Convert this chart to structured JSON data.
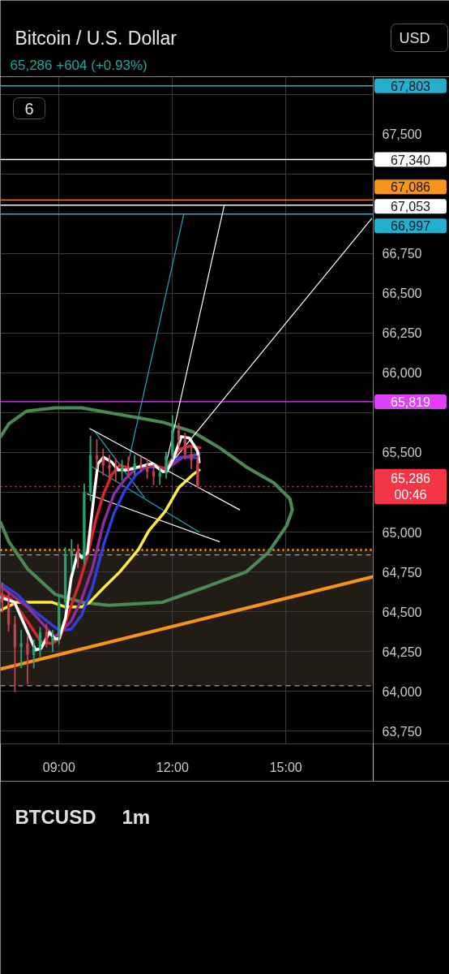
{
  "chart_data": {
    "type": "candlestick",
    "title": "Bitcoin / U.S. Dollar",
    "subtitle": "65,286 +604 (+0.93%)",
    "annotations": [
      "6",
      "USD",
      "BTCUSD",
      "1m"
    ],
    "xlim": [
      7.45,
      17.31
    ],
    "ylim": [
      63670,
      67860
    ],
    "xticks": [
      {
        "value": 9,
        "label": "09:00"
      },
      {
        "value": 12,
        "label": "12:00"
      },
      {
        "value": 15,
        "label": "15:00"
      }
    ],
    "yticks": [
      {
        "value": 63750,
        "label": "63,750"
      },
      {
        "value": 64000,
        "label": "64,000"
      },
      {
        "value": 64250,
        "label": "64,250"
      },
      {
        "value": 64500,
        "label": "64,500"
      },
      {
        "value": 64750,
        "label": "64,750"
      },
      {
        "value": 65000,
        "label": "65,000"
      },
      {
        "value": 65250,
        "label": null
      },
      {
        "value": 65500,
        "label": "65,500"
      },
      {
        "value": 65750,
        "label": null
      },
      {
        "value": 66000,
        "label": "66,000"
      },
      {
        "value": 66250,
        "label": "66,250"
      },
      {
        "value": 66500,
        "label": "66,500"
      },
      {
        "value": 66750,
        "label": "66,750"
      },
      {
        "value": 67000,
        "label": null
      },
      {
        "value": 67250,
        "label": null
      },
      {
        "value": 67500,
        "label": "67,500"
      },
      {
        "value": 67750,
        "label": null
      }
    ],
    "grid": true,
    "x": [
      7.5,
      7.667,
      7.833,
      8.0,
      8.167,
      8.333,
      8.5,
      8.667,
      8.833,
      9.0,
      9.167,
      9.333,
      9.5,
      9.667,
      9.833,
      10.0,
      10.167,
      10.333,
      10.5,
      10.667,
      10.833,
      11.0,
      11.167,
      11.333,
      11.5,
      11.667,
      11.833,
      12.0,
      12.167,
      12.333,
      12.5,
      12.667
    ],
    "ohlc": [
      [
        64600,
        64680,
        64500,
        64560
      ],
      [
        64560,
        64620,
        64380,
        64420
      ],
      [
        64420,
        64470,
        64000,
        64280
      ],
      [
        64280,
        64380,
        64150,
        64300
      ],
      [
        64300,
        64350,
        64050,
        64230
      ],
      [
        64230,
        64320,
        64150,
        64270
      ],
      [
        64270,
        64400,
        64220,
        64370
      ],
      [
        64370,
        64420,
        64280,
        64310
      ],
      [
        64310,
        64380,
        64250,
        64340
      ],
      [
        64340,
        64600,
        64300,
        64560
      ],
      [
        64560,
        64900,
        64520,
        64850
      ],
      [
        64850,
        64950,
        64760,
        64880
      ],
      [
        64880,
        64920,
        64780,
        64830
      ],
      [
        64830,
        65300,
        64800,
        65250
      ],
      [
        65250,
        65600,
        65200,
        65480
      ],
      [
        65480,
        65580,
        65400,
        65460
      ],
      [
        65460,
        65520,
        65360,
        65420
      ],
      [
        65420,
        65480,
        65340,
        65400
      ],
      [
        65400,
        65460,
        65320,
        65380
      ],
      [
        65380,
        65450,
        65330,
        65410
      ],
      [
        65410,
        65470,
        65350,
        65400
      ],
      [
        65400,
        65480,
        65360,
        65430
      ],
      [
        65430,
        65470,
        65380,
        65420
      ],
      [
        65420,
        65460,
        65340,
        65380
      ],
      [
        65380,
        65420,
        65300,
        65350
      ],
      [
        65350,
        65400,
        65300,
        65370
      ],
      [
        65370,
        65500,
        65340,
        65480
      ],
      [
        65480,
        65730,
        65460,
        65640
      ],
      [
        65640,
        65680,
        65540,
        65580
      ],
      [
        65580,
        65620,
        65460,
        65490
      ],
      [
        65490,
        65540,
        65400,
        65450
      ],
      [
        65450,
        65480,
        65280,
        65286
      ]
    ],
    "colors": [
      "#c2434b",
      "#c2434b",
      "#c2434b",
      "#25a36f",
      "#c2434b",
      "#25a36f",
      "#25a36f",
      "#c2434b",
      "#25a36f",
      "#25a36f",
      "#25a36f",
      "#25a36f",
      "#c2434b",
      "#25a36f",
      "#25a36f",
      "#c2434b",
      "#c2434b",
      "#c2434b",
      "#c2434b",
      "#25a36f",
      "#c2434b",
      "#25a36f",
      "#c2434b",
      "#c2434b",
      "#c2434b",
      "#25a36f",
      "#25a36f",
      "#25a36f",
      "#c2434b",
      "#c2434b",
      "#c2434b",
      "#c2434b"
    ],
    "bands": [
      {
        "axis": "y",
        "from": 64035,
        "to": 64888,
        "color": "#221c16"
      }
    ],
    "ref_lines": [
      {
        "axis": "y",
        "value": 67803,
        "label": "67,803",
        "color": "#22b0cc"
      },
      {
        "axis": "y",
        "value": 67340,
        "label": "67,340",
        "color": "#ffffff"
      },
      {
        "axis": "y",
        "value": 67086,
        "label": "67,086",
        "color": "#f7941d"
      },
      {
        "axis": "y",
        "value": 67053,
        "label": "67,053",
        "color": "#ffffff"
      },
      {
        "axis": "y",
        "value": 66997,
        "label": "66,997",
        "color": "#22b0cc"
      },
      {
        "axis": "y",
        "value": 65819,
        "label": "65,819",
        "color": "#e040fb"
      },
      {
        "axis": "y",
        "value": 65286,
        "label": "65,286\n00:46",
        "color": "#f23645",
        "line_style": "dotted"
      },
      {
        "axis": "y",
        "value": 64888,
        "label": null,
        "color": "#f7941d",
        "line_style": "dotted"
      },
      {
        "axis": "y",
        "value": 64857,
        "label": null,
        "color": "#9e9e9e",
        "line_style": "dashed"
      },
      {
        "axis": "y",
        "value": 64035,
        "label": null,
        "color": "#9e9e9e",
        "line_style": "dashed"
      }
    ],
    "series": [
      {
        "type": "line",
        "color": "#4a8a55",
        "x": [
          7.457,
          7.672,
          8.164,
          8.893,
          9.6,
          10.307,
          11.743,
          12.814,
          13.95,
          14.528,
          15.021,
          15.171,
          15.107,
          14.678,
          13.95,
          13.243,
          12.536,
          11.743,
          11.036,
          9.6,
          8.893,
          8.143,
          7.672,
          7.457
        ],
        "values": [
          65060,
          64940,
          64770,
          64610,
          64560,
          64540,
          64560,
          64650,
          64750,
          64870,
          65040,
          65140,
          65210,
          65310,
          65410,
          65530,
          65630,
          65690,
          65720,
          65780,
          65780,
          65760,
          65680,
          65600
        ]
      },
      {
        "type": "line",
        "color": "#f7931a",
        "x": [
          7.457,
          17.31
        ],
        "values": [
          64140,
          64720
        ]
      },
      {
        "type": "line",
        "color": "#26a6b8",
        "x": [
          9.921,
          11.25
        ],
        "values": [
          65640,
          65220
        ]
      },
      {
        "type": "line",
        "color": "#26a6b8",
        "x": [
          9.88,
          12.707
        ],
        "values": [
          65410,
          65000
        ]
      },
      {
        "type": "line",
        "color": "#26a6b8",
        "x": [
          10.779,
          12.3
        ],
        "values": [
          65380,
          66997
        ]
      },
      {
        "type": "line",
        "color": "#ffffff",
        "x": [
          9.814,
          13.778
        ],
        "values": [
          65650,
          65140
        ]
      },
      {
        "type": "line",
        "color": "#ffffff",
        "x": [
          9.75,
          13.243
        ],
        "values": [
          65240,
          64940
        ]
      },
      {
        "type": "line",
        "color": "#ffffff",
        "x": [
          11.807,
          13.371
        ],
        "values": [
          65400,
          67053
        ]
      },
      {
        "type": "line",
        "color": "#ffffff",
        "x": [
          11.85,
          17.271
        ],
        "values": [
          65400,
          66970
        ]
      },
      {
        "type": "line",
        "color": "#ffeb3b",
        "x": [
          7.457,
          7.886,
          8.314,
          8.807,
          9.171,
          9.6,
          9.814,
          10.179,
          10.607,
          11.1,
          11.379,
          11.807,
          12.171,
          12.536,
          12.707
        ],
        "values": [
          64510,
          64560,
          64560,
          64560,
          64530,
          64530,
          64560,
          64650,
          64750,
          64890,
          65010,
          65130,
          65280,
          65360,
          65390
        ]
      },
      {
        "type": "line",
        "color": "#2f3fd8",
        "x": [
          7.457,
          7.886,
          8.314,
          8.743,
          9.021,
          9.321,
          9.6,
          9.879,
          10.179,
          10.457,
          10.736,
          11.036,
          11.314,
          11.593,
          11.807,
          12.171,
          12.536,
          12.707
        ],
        "values": [
          64680,
          64610,
          64510,
          64430,
          64380,
          64390,
          64480,
          64650,
          64920,
          65120,
          65260,
          65360,
          65410,
          65410,
          65400,
          65470,
          65470,
          65460
        ]
      },
      {
        "type": "line",
        "color": "#8e2b9e",
        "x": [
          7.457,
          8.164,
          8.893,
          9.321,
          9.6,
          9.879,
          10.179,
          10.457,
          10.736,
          11.036,
          11.464,
          11.807,
          12.279,
          12.707
        ],
        "values": [
          64660,
          64530,
          64340,
          64440,
          64580,
          64770,
          65060,
          65240,
          65330,
          65400,
          65420,
          65390,
          65470,
          65490
        ]
      },
      {
        "type": "line",
        "color": "#d8262e",
        "x": [
          7.457,
          7.736,
          8.164,
          8.529,
          8.807,
          9.021,
          9.236,
          9.536,
          9.75,
          9.964,
          10.179,
          10.393,
          10.607,
          10.886,
          11.164,
          11.464,
          11.807,
          12.171,
          12.45,
          12.729
        ],
        "values": [
          64610,
          64580,
          64440,
          64310,
          64300,
          64330,
          64480,
          64680,
          64850,
          65070,
          65240,
          65360,
          65420,
          65400,
          65410,
          65420,
          65400,
          65520,
          65540,
          65530
        ]
      },
      {
        "type": "line",
        "color": "#ffffff",
        "x": [
          7.457,
          7.821,
          8.1,
          8.379,
          8.529,
          8.743,
          8.893,
          9.0,
          9.171,
          9.321,
          9.493,
          9.6,
          9.75,
          9.921,
          10.029,
          10.179,
          10.393,
          10.564,
          10.821,
          11.1,
          11.464,
          11.743,
          11.85,
          12.021,
          12.236,
          12.45,
          12.664,
          12.707
        ],
        "values": [
          64590,
          64560,
          64410,
          64260,
          64270,
          64370,
          64330,
          64330,
          64460,
          64710,
          64870,
          64840,
          64870,
          65220,
          65430,
          65470,
          65440,
          65390,
          65390,
          65410,
          65430,
          65380,
          65380,
          65460,
          65600,
          65590,
          65510,
          65440
        ]
      }
    ]
  }
}
